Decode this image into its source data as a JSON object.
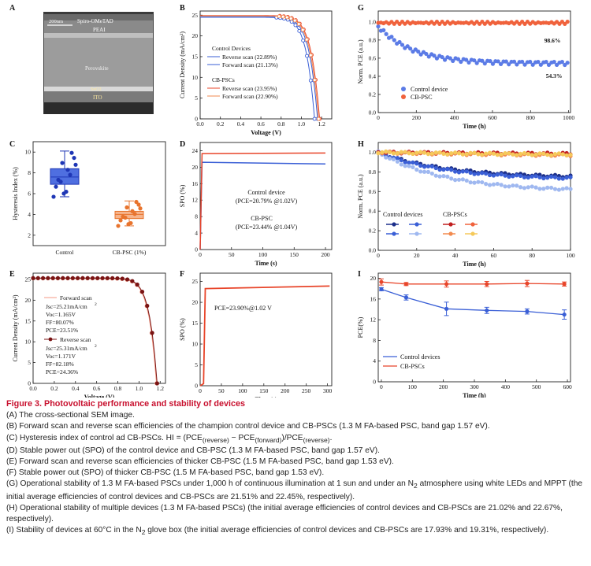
{
  "panels": {
    "A": {
      "letter": "A",
      "scale": "200nm",
      "layers": [
        "Spiro-OMeTAD",
        "PEAI",
        "Perovskite",
        "SnO2",
        "ITO"
      ]
    },
    "B": {
      "letter": "B",
      "xlabel": "Voltage (V)",
      "ylabel": "Current Density (mA/cm²)",
      "legend": {
        "group1": "Control Devices",
        "rev1": "Reverse scan (22.89%)",
        "fwd1": "Forward scan (21.13%)",
        "group2": "CB-PSCs",
        "rev2": "Reverse scan (23.95%)",
        "fwd2": "Forward scan (22.90%)"
      },
      "xticks": [
        "0.0",
        "0.2",
        "0.4",
        "0.6",
        "0.8",
        "1.0",
        "1.2"
      ],
      "yticks": [
        "0",
        "5",
        "10",
        "15",
        "20",
        "25"
      ]
    },
    "C": {
      "letter": "C",
      "ylabel": "Hysteresis Index (%)",
      "cats": [
        "Control",
        "CB-PSC (1%)"
      ],
      "yticks": [
        "2",
        "4",
        "6",
        "8",
        "10"
      ]
    },
    "D": {
      "letter": "D",
      "xlabel": "Time (s)",
      "ylabel": "SPO (%)",
      "xticks": [
        "0",
        "50",
        "100",
        "150",
        "200"
      ],
      "yticks": [
        "0",
        "4",
        "8",
        "12",
        "16",
        "20",
        "24"
      ],
      "t1": "Control device",
      "t2": "(PCE=20.79% @1.02V)",
      "t3": "CB-PSC",
      "t4": "(PCE=23.44% @1.04V)"
    },
    "E": {
      "letter": "E",
      "xlabel": "Voltage (V)",
      "ylabel": "Current Density (mA/cm²)",
      "xticks": [
        "0.0",
        "0.2",
        "0.4",
        "0.6",
        "0.8",
        "1.0",
        "1.2"
      ],
      "yticks": [
        "0",
        "5",
        "10",
        "15",
        "20",
        "25"
      ],
      "fwd": "Forward scan",
      "fj": "Jsc=25.21mA/cm",
      "fv": "Voc=1.165V",
      "fff": "FF=80.07%",
      "fp": "PCE=23.51%",
      "rev": "Reverse scan",
      "rj": "Jsc=25.31mA/cm",
      "rv": "Voc=1.171V",
      "rff": "FF=82.18%",
      "rp": "PCE=24.36%",
      "sup": "2"
    },
    "F": {
      "letter": "F",
      "xlabel": "Time (s)",
      "ylabel": "SPO (%)",
      "xticks": [
        "0",
        "50",
        "100",
        "150",
        "200",
        "250",
        "300"
      ],
      "yticks": [
        "0",
        "5",
        "10",
        "15",
        "20",
        "25"
      ],
      "note": "PCE=23.90%@1.02 V"
    },
    "G": {
      "letter": "G",
      "xlabel": "Time (h)",
      "ylabel": "Norm. PCE (a.u.)",
      "xticks": [
        "0",
        "200",
        "400",
        "600",
        "800",
        "1000"
      ],
      "yticks": [
        "0.0",
        "0.2",
        "0.4",
        "0.6",
        "0.8",
        "1.0"
      ],
      "l1": "Control device",
      "l2": "CB-PSC",
      "a1": "98.6%",
      "a2": "54.3%"
    },
    "H": {
      "letter": "H",
      "xlabel": "Time (h)",
      "ylabel": "Norm. PCE (a.u.)",
      "xticks": [
        "0",
        "20",
        "40",
        "60",
        "80",
        "100"
      ],
      "yticks": [
        "0.0",
        "0.2",
        "0.4",
        "0.6",
        "0.8",
        "1.0"
      ],
      "l1": "Control devices",
      "l2": "CB-PSCs"
    },
    "I": {
      "letter": "I",
      "xlabel": "Time (h)",
      "ylabel": "PCE(%)",
      "xticks": [
        "0",
        "100",
        "200",
        "300",
        "400",
        "500",
        "600"
      ],
      "yticks": [
        "0",
        "4",
        "8",
        "12",
        "16",
        "20"
      ],
      "l1": "Control devices",
      "l2": "CB-PSCs"
    }
  },
  "colors": {
    "blue": "#3a5fd6",
    "red": "#e8452a",
    "orange": "#f28a4f",
    "darkred": "#7a1414",
    "lightblue": "#9fb8f0",
    "navy": "#1c2f8a"
  },
  "chart_data": [
    {
      "panel": "B",
      "type": "line",
      "xlabel": "Voltage (V)",
      "ylabel": "Current Density (mA/cm2)",
      "xlim": [
        0,
        1.3
      ],
      "ylim": [
        0,
        26
      ],
      "series": [
        {
          "name": "Reverse scan (22.89%)",
          "Jsc": 24.6,
          "Voc": 1.16
        },
        {
          "name": "Forward scan (21.13%)",
          "Jsc": 24.5,
          "Voc": 1.13
        },
        {
          "name": "Reverse scan (23.95%)",
          "Jsc": 24.9,
          "Voc": 1.18
        },
        {
          "name": "Forward scan (22.90%)",
          "Jsc": 24.8,
          "Voc": 1.17
        }
      ]
    },
    {
      "panel": "C",
      "type": "box",
      "categories": [
        "Control",
        "CB-PSC (1%)"
      ],
      "ylim": [
        1,
        11
      ],
      "boxes": [
        {
          "q1": 6.9,
          "median": 7.6,
          "q3": 8.4,
          "min": 5.7,
          "max": 10.1
        },
        {
          "q1": 3.6,
          "median": 4.0,
          "q3": 4.3,
          "min": 2.9,
          "max": 5.3
        }
      ]
    },
    {
      "panel": "D",
      "type": "line",
      "xlim": [
        0,
        210
      ],
      "ylim": [
        0,
        26
      ],
      "series": [
        {
          "name": "Control device",
          "steady": 20.79
        },
        {
          "name": "CB-PSC",
          "steady": 23.44
        }
      ]
    },
    {
      "panel": "E",
      "type": "line",
      "xlim": [
        0,
        1.25
      ],
      "ylim": [
        0,
        26.5
      ],
      "series": [
        {
          "name": "Forward scan",
          "Jsc": 25.21,
          "Voc": 1.165
        },
        {
          "name": "Reverse scan",
          "Jsc": 25.31,
          "Voc": 1.171
        }
      ]
    },
    {
      "panel": "F",
      "type": "line",
      "xlim": [
        0,
        310
      ],
      "ylim": [
        0,
        27
      ],
      "series": [
        {
          "name": "CB-PSC",
          "steady": 23.9
        }
      ]
    },
    {
      "panel": "G",
      "type": "scatter",
      "xlim": [
        0,
        1010
      ],
      "ylim": [
        0,
        1.12
      ],
      "series": [
        {
          "name": "Control device",
          "final": 0.543
        },
        {
          "name": "CB-PSC",
          "final": 0.986
        }
      ]
    },
    {
      "panel": "H",
      "type": "line",
      "xlim": [
        0,
        100
      ],
      "ylim": [
        0,
        1.1
      ],
      "series": [
        {
          "name": "Control 1",
          "final": 0.74
        },
        {
          "name": "Control 2",
          "final": 0.72
        },
        {
          "name": "Control 3",
          "final": 0.6
        },
        {
          "name": "CB 1",
          "final": 0.98
        },
        {
          "name": "CB 2",
          "final": 0.96
        },
        {
          "name": "CB 3",
          "final": 0.97
        }
      ]
    },
    {
      "panel": "I",
      "type": "line",
      "x": [
        0,
        80,
        210,
        340,
        470,
        590
      ],
      "ylim": [
        0,
        21
      ],
      "series": [
        {
          "name": "Control devices",
          "values": [
            17.9,
            16.3,
            14.1,
            13.8,
            13.6,
            13.0
          ]
        },
        {
          "name": "CB-PSCs",
          "values": [
            19.3,
            18.9,
            18.9,
            18.9,
            19.0,
            18.9
          ]
        }
      ]
    }
  ],
  "caption": {
    "title": "Figure 3.  Photovoltaic performance and stability of devices",
    "A": "(A) The cross-sectional SEM image.",
    "B": "(B) Forward scan and reverse scan efficiencies of the champion control device and CB-PSCs (1.3 M FA-based PSC, band gap 1.57 eV).",
    "C1": "(C) Hysteresis index of control ad CB-PSCs. HI = (PCE",
    "C2": "(reverse)",
    "C3": " − PCE",
    "C4": "(forward)",
    "C5": ")/PCE",
    "C6": "(reverse)",
    "C7": ".",
    "D": "(D) Stable power out (SPO) of the control device and CB-PSC (1.3 M FA-based PSC, band gap 1.57 eV).",
    "E": "(E) Forward scan and reverse scan efficiencies of thicker CB-PSC (1.5 M FA-based PSC, band gap 1.53 eV).",
    "F": "(F) Stable power out (SPO) of thicker CB-PSC (1.5 M FA-based PSC, band gap 1.53 eV).",
    "G1": "(G) Operational stability of 1.3 M FA-based PSCs under 1,000 h of continuous illumination at 1 sun and under an N",
    "G2": "2",
    "G3": " atmosphere using white LEDs and MPPT (the initial average efficiencies of control devices and CB-PSCs are 21.51% and 22.45%, respectively).",
    "H": "(H) Operational stability of multiple devices (1.3 M FA-based PSCs) (the initial average efficiencies of control devices and CB-PSCs are 21.02% and 22.67%, respectively).",
    "I1": "(I) Stability of devices at 60°C in the N",
    "I2": "2",
    "I3": " glove box (the initial average efficiencies of control devices and CB-PSCs are 17.93% and 19.31%, respectively)."
  }
}
